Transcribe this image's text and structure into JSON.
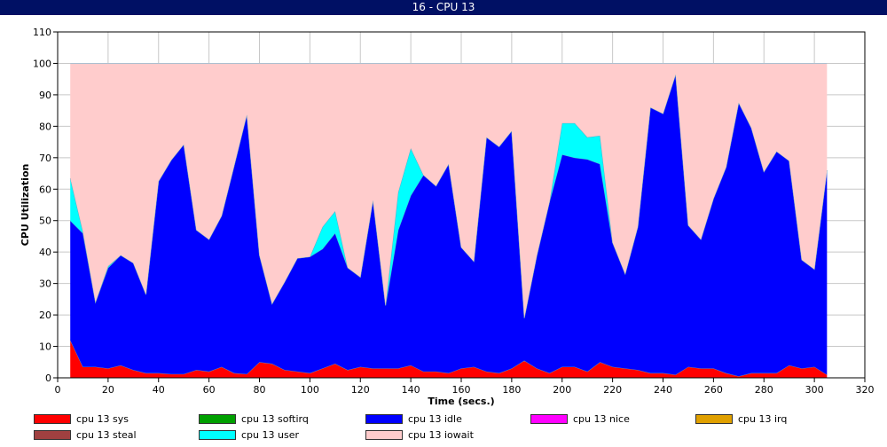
{
  "window": {
    "title": "16 - CPU 13"
  },
  "chart_data": {
    "type": "area",
    "stacked": true,
    "xlabel": "Time (secs.)",
    "ylabel": "CPU Utilization",
    "xlim": [
      0,
      320
    ],
    "ylim": [
      0,
      110
    ],
    "xticks": [
      0,
      20,
      40,
      60,
      80,
      100,
      120,
      140,
      160,
      180,
      200,
      220,
      240,
      260,
      280,
      300,
      320
    ],
    "yticks": [
      0,
      10,
      20,
      30,
      40,
      50,
      60,
      70,
      80,
      90,
      100,
      110
    ],
    "grid": true,
    "legend_position": "bottom",
    "x": [
      5,
      10,
      15,
      20,
      25,
      30,
      35,
      40,
      45,
      50,
      55,
      60,
      65,
      70,
      75,
      80,
      85,
      90,
      95,
      100,
      105,
      110,
      115,
      120,
      125,
      130,
      135,
      140,
      145,
      150,
      155,
      160,
      165,
      170,
      175,
      180,
      185,
      190,
      195,
      200,
      205,
      210,
      215,
      220,
      225,
      230,
      235,
      240,
      245,
      250,
      255,
      260,
      265,
      270,
      275,
      280,
      285,
      290,
      295,
      300,
      305
    ],
    "series": [
      {
        "name": "cpu 13 sys",
        "color": "#ff0000",
        "values": [
          12,
          3.5,
          3.5,
          3,
          4,
          2.5,
          1.5,
          1.5,
          1.2,
          1.2,
          2.5,
          2,
          3.5,
          1.5,
          1.2,
          5,
          4.5,
          2.5,
          2,
          1.5,
          3,
          4.5,
          2.5,
          3.5,
          3,
          3,
          3,
          4,
          2,
          2,
          1.5,
          3,
          3.5,
          2,
          1.5,
          3,
          5.5,
          3,
          1.5,
          3.5,
          3.5,
          2,
          5,
          3.5,
          3,
          2.5,
          1.5,
          1.5,
          1,
          3.5,
          3,
          3,
          1.5,
          0.5,
          1.5,
          1.5,
          1.5,
          4,
          3,
          3.5,
          1
        ]
      },
      {
        "name": "cpu 13 softirq",
        "color": "#00a000",
        "values": [
          0,
          0,
          0,
          0,
          0,
          0,
          0,
          0,
          0,
          0,
          0,
          0,
          0,
          0,
          0,
          0,
          0,
          0,
          0,
          0,
          0,
          0,
          0,
          0,
          0,
          0,
          0,
          0,
          0,
          0,
          0,
          0,
          0,
          0,
          0,
          0,
          0,
          0,
          0,
          0,
          0,
          0,
          0,
          0,
          0,
          0,
          0,
          0,
          0,
          0,
          0,
          0,
          0,
          0,
          0,
          0,
          0,
          0,
          0,
          0,
          0
        ]
      },
      {
        "name": "cpu 13 idle",
        "color": "#0000ff",
        "values": [
          38,
          42.5,
          20.5,
          32,
          35,
          34,
          25,
          61,
          68,
          73,
          44.5,
          42,
          48,
          66,
          82.5,
          34,
          19,
          28,
          36,
          37,
          38,
          41.5,
          32.5,
          28.5,
          53.5,
          20,
          44,
          54,
          62.5,
          59,
          66.5,
          38.5,
          33.5,
          74.5,
          72,
          75.5,
          13.5,
          36,
          54.5,
          67.5,
          66.5,
          67.5,
          63,
          39.5,
          30,
          45.5,
          84.5,
          82.5,
          95.5,
          45,
          41,
          54,
          65.5,
          87,
          78,
          64,
          70.5,
          65,
          34.5,
          31,
          65
        ]
      },
      {
        "name": "cpu 13 nice",
        "color": "#ff00ff",
        "values": [
          0,
          0,
          0,
          0,
          0,
          0,
          0,
          0,
          0,
          0,
          0,
          0,
          0,
          0,
          0,
          0,
          0,
          0,
          0,
          0,
          0,
          0,
          0,
          0,
          0,
          0,
          0,
          0,
          0,
          0,
          0,
          0,
          0,
          0,
          0,
          0,
          0,
          0,
          0,
          0,
          0,
          0,
          0,
          0,
          0,
          0,
          0,
          0,
          0,
          0,
          0,
          0,
          0,
          0,
          0,
          0,
          0,
          0,
          0,
          0,
          0
        ]
      },
      {
        "name": "cpu 13 irq",
        "color": "#e0a000",
        "values": [
          0,
          0,
          0,
          0,
          0,
          0,
          0,
          0,
          0,
          0,
          0,
          0,
          0,
          0,
          0,
          0,
          0,
          0,
          0,
          0,
          0,
          0,
          0,
          0,
          0,
          0,
          0,
          0,
          0,
          0,
          0,
          0,
          0,
          0,
          0,
          0,
          0,
          0,
          0,
          0,
          0,
          0,
          0,
          0,
          0,
          0,
          0,
          0,
          0,
          0,
          0,
          0,
          0,
          0,
          0,
          0,
          0,
          0,
          0,
          0,
          0
        ]
      },
      {
        "name": "cpu 13 steal",
        "color": "#a04040",
        "values": [
          0,
          0,
          0,
          0,
          0,
          0,
          0,
          0,
          0,
          0,
          0,
          0,
          0,
          0,
          0,
          0,
          0,
          0,
          0,
          0,
          0,
          0,
          0,
          0,
          0,
          0,
          0,
          0,
          0,
          0,
          0,
          0,
          0,
          0,
          0,
          0,
          0,
          0,
          0,
          0,
          0,
          0,
          0,
          0,
          0,
          0,
          0,
          0,
          0,
          0,
          0,
          0,
          0,
          0,
          0,
          0,
          0,
          0,
          0,
          0,
          0
        ]
      },
      {
        "name": "cpu 13 user",
        "color": "#00ffff",
        "values": [
          13.5,
          0.5,
          0,
          0.5,
          0,
          0,
          0,
          0,
          0,
          0,
          0,
          0,
          0,
          0,
          0,
          0,
          0,
          0,
          0,
          0,
          7,
          7,
          0,
          0,
          0,
          0,
          12,
          15,
          0,
          0,
          0,
          0,
          0,
          0,
          0,
          0,
          0,
          0,
          0,
          10,
          11,
          7,
          9,
          0,
          0,
          0,
          0,
          0,
          0,
          0,
          0,
          0,
          0,
          0,
          0,
          0,
          0,
          0,
          0,
          0,
          0
        ]
      },
      {
        "name": "cpu 13 iowait",
        "color": "#ffcccc",
        "values": [
          36.5,
          53.5,
          76,
          64.5,
          61,
          63.5,
          73.5,
          37.5,
          30.8,
          25.8,
          53,
          56,
          48.5,
          32.5,
          16.3,
          61,
          76.5,
          69.5,
          62,
          61.5,
          52,
          47,
          65,
          68,
          43.5,
          77,
          41,
          27,
          35.5,
          39,
          32,
          58.5,
          63,
          23.5,
          26.5,
          21.5,
          81,
          61,
          44,
          19,
          19,
          23.5,
          23,
          57,
          67,
          52,
          14,
          16,
          3.5,
          51.5,
          56,
          43,
          33,
          12.5,
          20.5,
          34.5,
          28,
          31,
          62.5,
          65.5,
          34
        ]
      }
    ]
  }
}
